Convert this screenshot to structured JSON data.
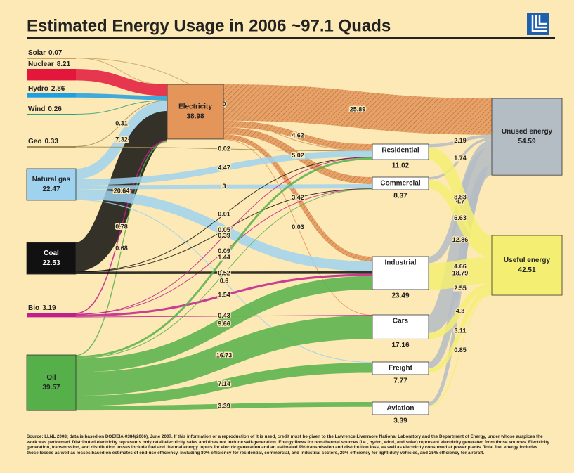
{
  "chart_data": {
    "type": "sankey",
    "title": "Estimated Energy Usage in 2006 ~97.1 Quads",
    "nodes": [
      {
        "name": "Solar",
        "value": 0.07,
        "color": "#c8a060"
      },
      {
        "name": "Nuclear",
        "value": 8.21,
        "color": "#e3173c"
      },
      {
        "name": "Hydro",
        "value": 2.86,
        "color": "#1e9fe0"
      },
      {
        "name": "Wind",
        "value": 0.26,
        "color": "#2aa07a"
      },
      {
        "name": "Geo",
        "value": 0.33,
        "color": "#a08a50"
      },
      {
        "name": "Natural gas",
        "value": 22.47,
        "color": "#9fd2ee"
      },
      {
        "name": "Coal",
        "value": 22.53,
        "color": "#111111"
      },
      {
        "name": "Bio",
        "value": 3.19,
        "color": "#c0208c"
      },
      {
        "name": "Oil",
        "value": 39.57,
        "color": "#55b04a"
      },
      {
        "name": "Electricity",
        "value": 38.98,
        "color": "#e4955a"
      },
      {
        "name": "Residential",
        "value": 11.02,
        "color": "#ffffff"
      },
      {
        "name": "Commercial",
        "value": 8.37,
        "color": "#ffffff"
      },
      {
        "name": "Industrial",
        "value": 23.49,
        "color": "#ffffff"
      },
      {
        "name": "Cars",
        "value": 17.16,
        "color": "#ffffff"
      },
      {
        "name": "Freight",
        "value": 7.77,
        "color": "#ffffff"
      },
      {
        "name": "Aviation",
        "value": 3.39,
        "color": "#ffffff"
      },
      {
        "name": "Unused energy",
        "value": 54.59,
        "color": "#b4bcc4"
      },
      {
        "name": "Useful energy",
        "value": 42.51,
        "color": "#f4ee72"
      }
    ],
    "links": [
      {
        "source": "Solar",
        "target": "Electricity"
      },
      {
        "source": "Nuclear",
        "target": "Electricity"
      },
      {
        "source": "Hydro",
        "target": "Electricity"
      },
      {
        "source": "Wind",
        "target": "Electricity"
      },
      {
        "source": "Geo",
        "target": "Electricity",
        "value": 0.31
      },
      {
        "source": "Natural gas",
        "target": "Electricity",
        "value": 7.32
      },
      {
        "source": "Coal",
        "target": "Electricity",
        "value": 20.64
      },
      {
        "source": "Bio",
        "target": "Electricity",
        "value": 0.78
      },
      {
        "source": "Oil",
        "target": "Electricity",
        "value": 0.68
      },
      {
        "source": "Electricity",
        "target": "Unused energy",
        "value": 25.89
      },
      {
        "source": "Electricity",
        "target": "Residential",
        "value": 4.62
      },
      {
        "source": "Electricity",
        "target": "Commercial",
        "value": 5.02
      },
      {
        "source": "Electricity",
        "target": "Industrial",
        "value": 3.42
      },
      {
        "source": "Electricity",
        "target": "Cars",
        "value": 0.03
      },
      {
        "source": "Geo",
        "target": "Residential",
        "value": 0.02
      },
      {
        "source": "Solar",
        "target": "Residential",
        "value": 0
      },
      {
        "source": "Natural gas",
        "target": "Residential",
        "value": 4.47
      },
      {
        "source": "Natural gas",
        "target": "Commercial",
        "value": 3
      },
      {
        "source": "Natural gas",
        "target": "Industrial",
        "value": 7.07
      },
      {
        "source": "Natural gas",
        "target": "Freight",
        "value": 0.6
      },
      {
        "source": "Coal",
        "target": "Residential",
        "value": 0.01
      },
      {
        "source": "Coal",
        "target": "Commercial",
        "value": 0.05
      },
      {
        "source": "Bio",
        "target": "Commercial",
        "value": 0.09
      },
      {
        "source": "Coal",
        "target": "Industrial",
        "value": 1.8
      },
      {
        "source": "Bio",
        "target": "Residential",
        "value": 0.39
      },
      {
        "source": "Bio",
        "target": "Industrial",
        "value": 1.54
      },
      {
        "source": "Bio",
        "target": "Cars",
        "value": 0.43
      },
      {
        "source": "Oil",
        "target": "Residential",
        "value": 1.44
      },
      {
        "source": "Oil",
        "target": "Commercial",
        "value": 0.52
      },
      {
        "source": "Oil",
        "target": "Industrial",
        "value": 9.66
      },
      {
        "source": "Oil",
        "target": "Cars",
        "value": 16.73
      },
      {
        "source": "Oil",
        "target": "Freight",
        "value": 7.14
      },
      {
        "source": "Oil",
        "target": "Aviation",
        "value": 3.39
      },
      {
        "source": "Residential",
        "target": "Unused energy",
        "value": 2.19
      },
      {
        "source": "Commercial",
        "target": "Unused energy",
        "value": 1.74
      },
      {
        "source": "Industrial",
        "target": "Unused energy",
        "value": 4.7
      },
      {
        "source": "Cars",
        "target": "Unused energy",
        "value": 12.86
      },
      {
        "source": "Freight",
        "target": "Unused energy",
        "value": 4.66
      },
      {
        "source": "Aviation",
        "target": "Unused energy",
        "value": 2.55
      },
      {
        "source": "Residential",
        "target": "Useful energy",
        "value": 8.83
      },
      {
        "source": "Commercial",
        "target": "Useful energy",
        "value": 6.63
      },
      {
        "source": "Industrial",
        "target": "Useful energy",
        "value": 18.79
      },
      {
        "source": "Cars",
        "target": "Useful energy",
        "value": 4.3
      },
      {
        "source": "Freight",
        "target": "Useful energy",
        "value": 3.11
      },
      {
        "source": "Aviation",
        "target": "Useful energy",
        "value": 0.85
      }
    ],
    "footnote": "Source: LLNL 2008; data is based on DOE/EIA-0384(2006), June 2007. If this information or a reproduction of it is used, credit must be given to the Lawrence Livermore National Laboratory and the Department of Energy, under whose auspices the work was performed. Distributed electricity represents only retail electricity sales and does not include self-generation. Energy flows for non-thermal sources (i.e., hydro, wind, and solar) represent electricity generated from those sources. Electricity generation, transmission, and distribution losses include fuel and thermal energy inputs for electric generation and an estimated 9% transmission and distribution loss, as well as electricity consumed at power plants. Total fuel energy includes those losses as well as losses based on estimates of end-use efficiency, including 80% efficiency for residential, commercial, and industrial sectors, 20% efficiency for light-duty vehicles, and 25% efficiency for aircraft."
  }
}
